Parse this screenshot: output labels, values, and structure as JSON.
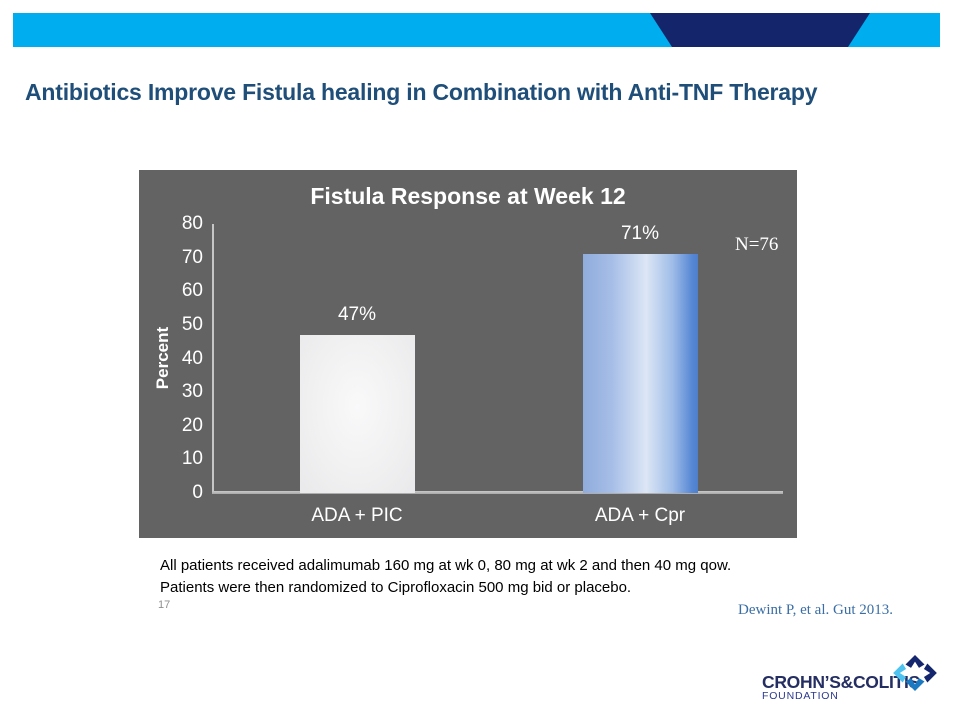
{
  "slide": {
    "title": "Antibiotics Improve Fistula healing in Combination with Anti-TNF Therapy"
  },
  "chart_data": {
    "type": "bar",
    "title": "Fistula Response at Week 12",
    "categories": [
      "ADA + PIC",
      "ADA + Cpr"
    ],
    "values": [
      47,
      71
    ],
    "value_labels": [
      "47%",
      "71%"
    ],
    "xlabel": "",
    "ylabel": "Percent",
    "ylim": [
      0,
      80
    ],
    "ytick_step": 10,
    "annotation": "N=76",
    "legend": "none",
    "grid": false,
    "panel_bg": "#636363",
    "bar_styles": [
      "white",
      "blue-gradient"
    ]
  },
  "footnote": {
    "line1": "All patients received adalimumab 160 mg at wk 0, 80 mg at wk 2 and then 40 mg qow.",
    "line2": "Patients were then randomized to Ciprofloxacin 500 mg bid or placebo.",
    "page_number": "17",
    "citation": "Dewint P, et al. Gut 2013."
  },
  "logo": {
    "name_part1": "CROHN’S",
    "ampersand": "&",
    "name_part2": "COLITIS",
    "subtitle": "FOUNDATION"
  },
  "colors": {
    "banner": "#00AEEF",
    "banner_accent": "#15256B",
    "title": "#1F4E79",
    "citation": "#3A6EA5"
  }
}
